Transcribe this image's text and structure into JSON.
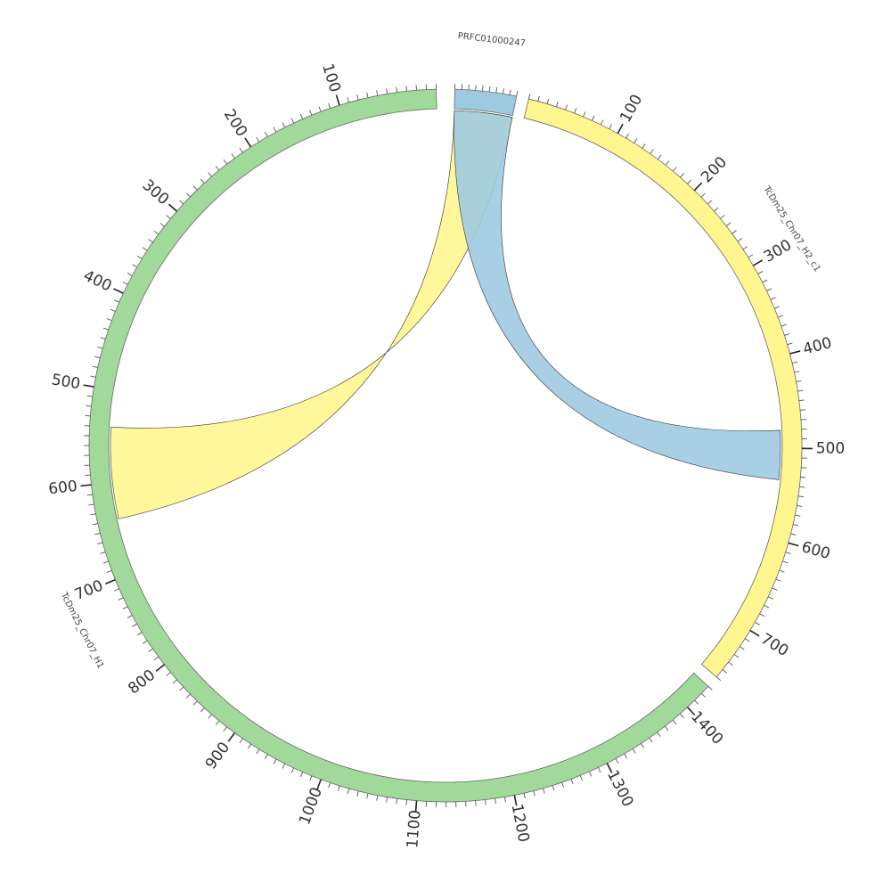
{
  "chart_data": {
    "type": "chord",
    "segments": [
      {
        "name": "PRFC01000247",
        "length": 90,
        "color": "#9ecae1",
        "start_deg": 1.5,
        "end_deg": 11.5,
        "reverse": false,
        "tick_labels": []
      },
      {
        "name": "TcDm25_Chr07_H2_c1",
        "length": 760,
        "color": "#fff68f",
        "start_deg": 13.5,
        "end_deg": 130.5,
        "reverse": false,
        "tick_labels": [
          "100",
          "200",
          "300",
          "400",
          "500",
          "600",
          "700"
        ]
      },
      {
        "name": "TcDm25_Chr07_H1",
        "length": 1430,
        "color": "#a1d99b",
        "start_deg": 132.5,
        "end_deg": 358.5,
        "reverse": true,
        "tick_labels": [
          "100",
          "200",
          "300",
          "400",
          "500",
          "600",
          "700",
          "800",
          "900",
          "1000",
          "1100",
          "1200",
          "1300",
          "1400"
        ]
      }
    ],
    "links": [
      {
        "color": "#fff68f",
        "from": {
          "segment": "PRFC01000247",
          "start": 0,
          "end": 90
        },
        "to": {
          "segment": "TcDm25_Chr07_H1",
          "start": 540,
          "end": 640
        }
      },
      {
        "color": "#9ecae1",
        "from": {
          "segment": "PRFC01000247",
          "start": 0,
          "end": 90
        },
        "to": {
          "segment": "TcDm25_Chr07_H2_c1",
          "start": 480,
          "end": 535
        }
      }
    ]
  }
}
